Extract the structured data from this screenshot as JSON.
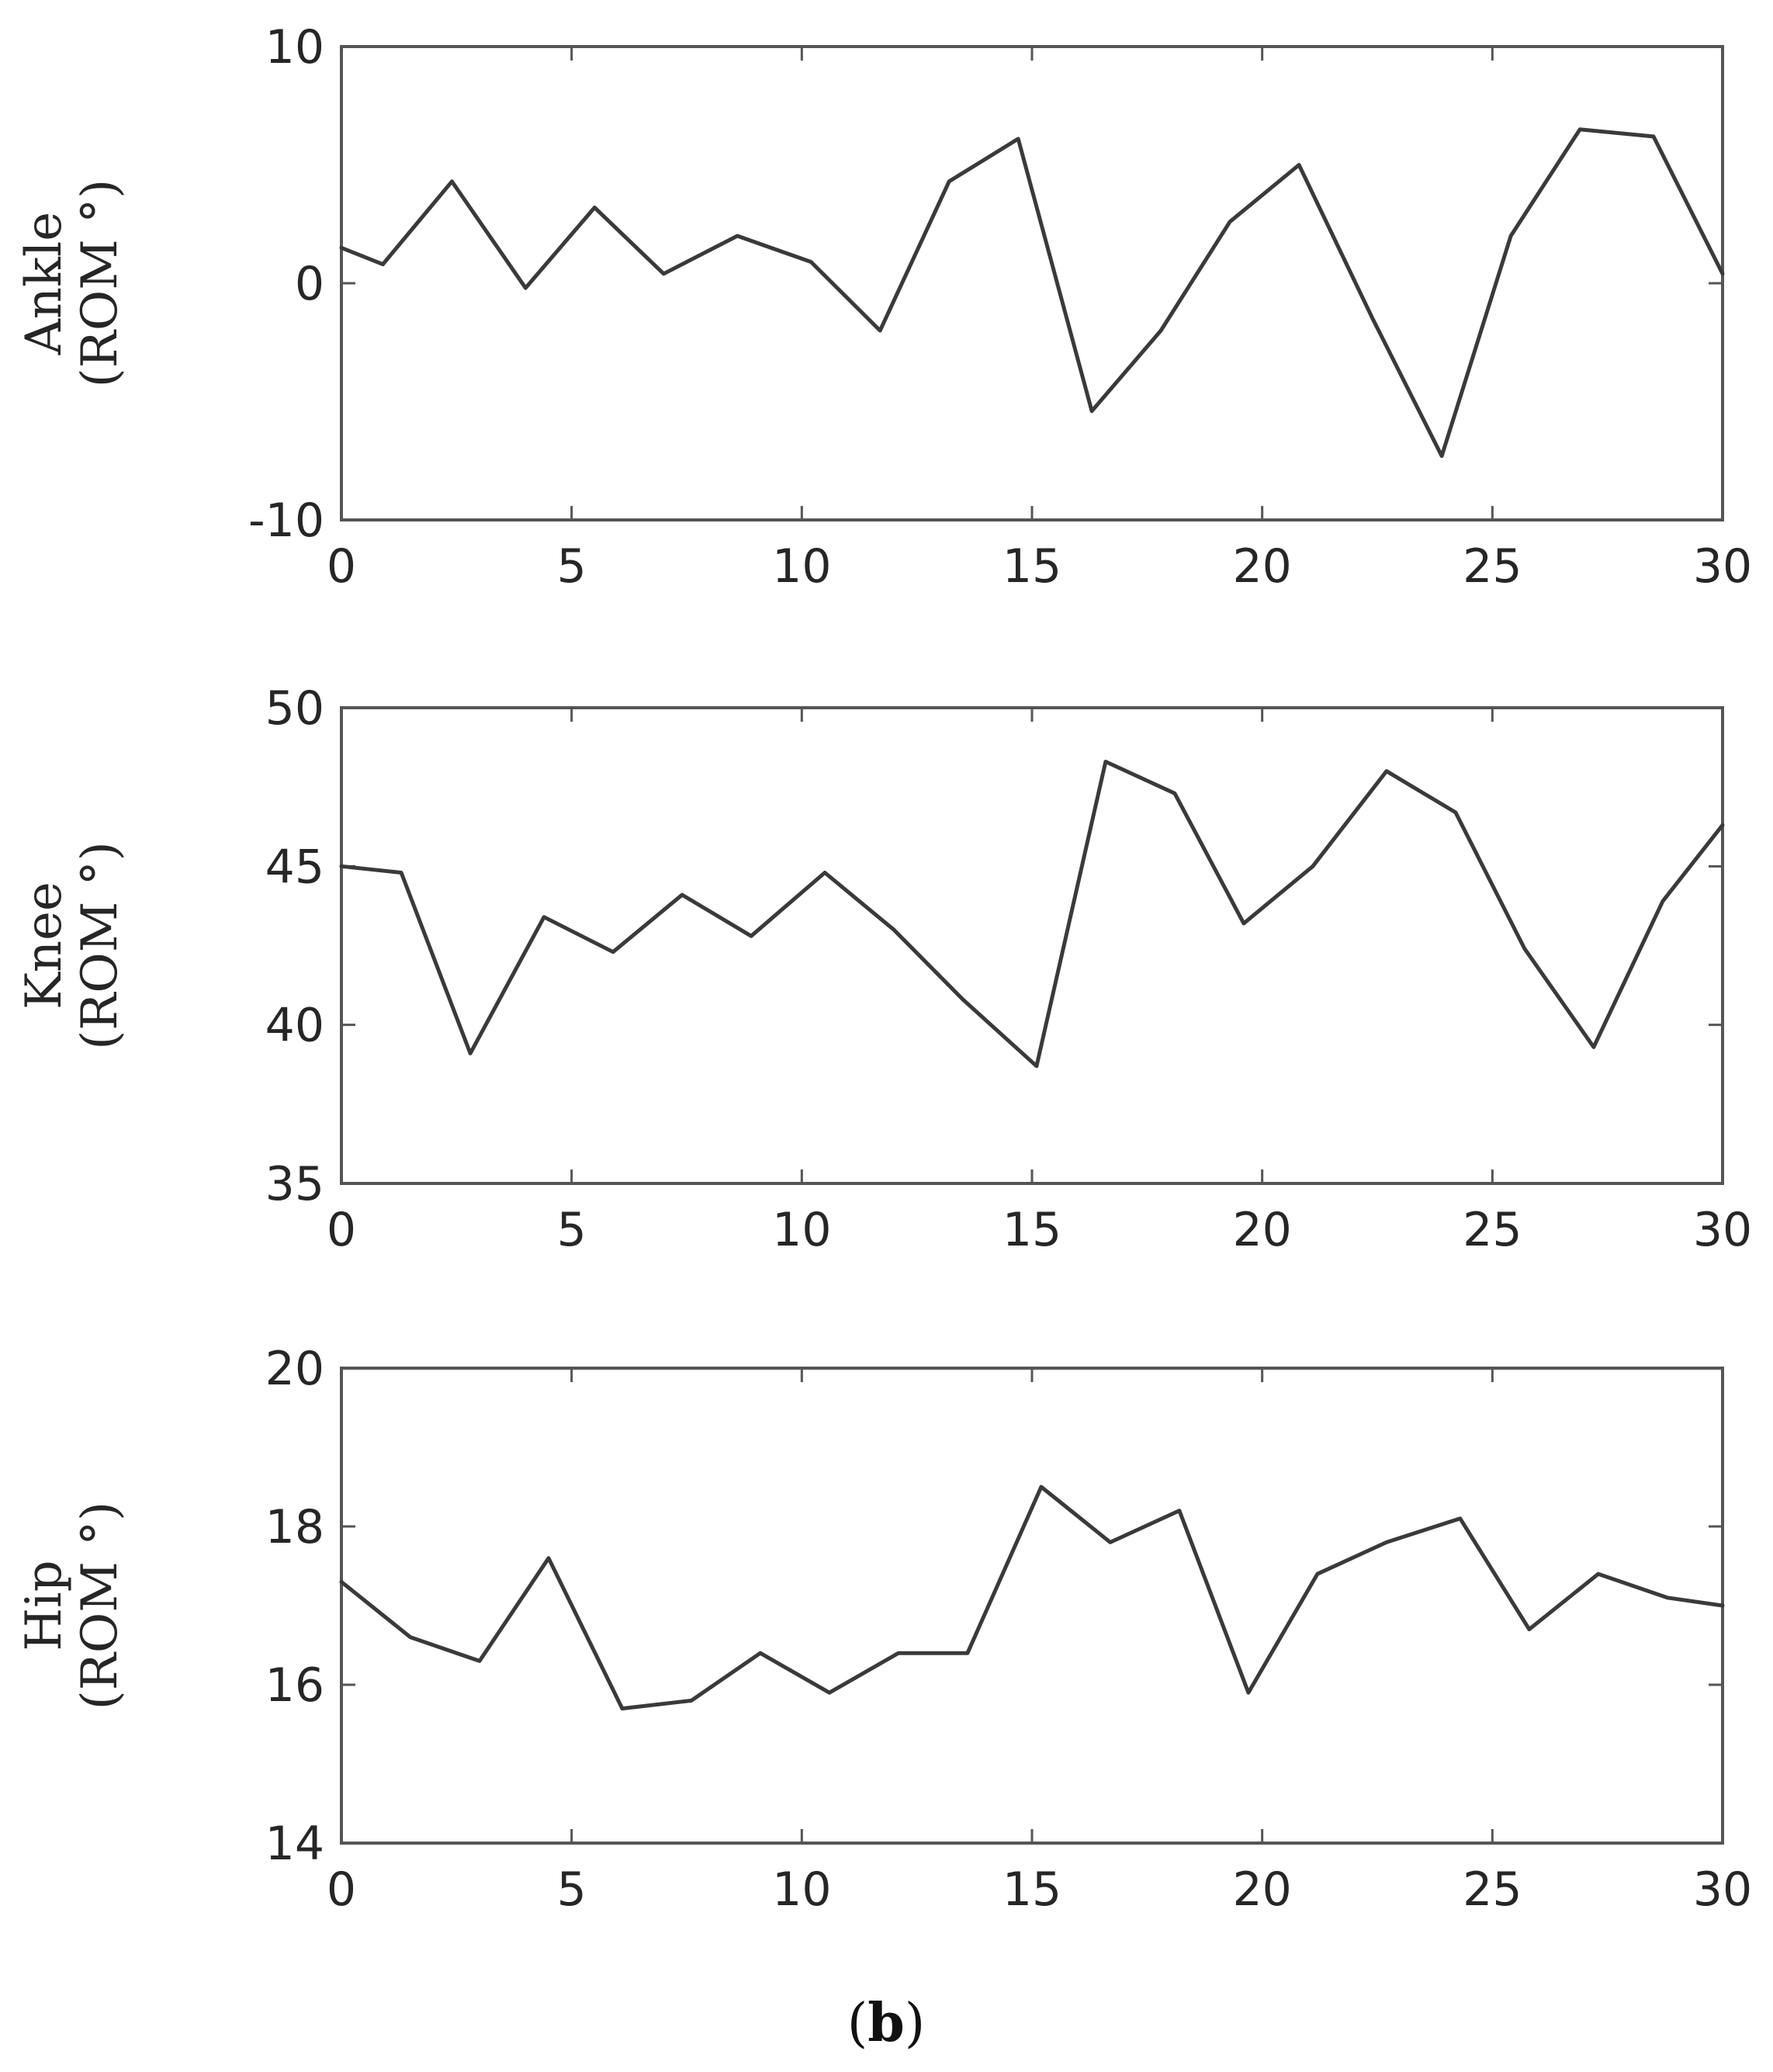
{
  "chart_data": [
    {
      "type": "line",
      "ylabel_line1": "Ankle",
      "ylabel_line2": "(ROM °)",
      "xlim": [
        0,
        30
      ],
      "ylim": [
        -10,
        10
      ],
      "xticks": [
        "0",
        "5",
        "10",
        "15",
        "20",
        "25",
        "30"
      ],
      "yticks": [
        "-10",
        "0",
        "10"
      ],
      "grid": false,
      "series": [
        {
          "x": [
            0,
            0.9,
            2.4,
            4.0,
            5.5,
            7.0,
            8.6,
            10.2,
            11.7,
            13.2,
            14.7,
            16.3,
            17.8,
            19.3,
            20.8,
            22.4,
            23.9,
            25.4,
            26.9,
            28.5,
            30.0
          ],
          "y": [
            1.5,
            0.8,
            4.3,
            -0.2,
            3.2,
            0.4,
            2.0,
            0.9,
            -2.0,
            4.3,
            6.1,
            -5.4,
            -2.0,
            2.6,
            5.0,
            -1.5,
            -7.3,
            2.0,
            6.5,
            6.2,
            0.4
          ]
        }
      ]
    },
    {
      "type": "line",
      "ylabel_line1": "Knee",
      "ylabel_line2": "(ROM °)",
      "xlim": [
        0,
        30
      ],
      "ylim": [
        35,
        50
      ],
      "xticks": [
        "0",
        "5",
        "10",
        "15",
        "20",
        "25",
        "30"
      ],
      "yticks": [
        "35",
        "40",
        "45",
        "50"
      ],
      "grid": false,
      "series": [
        {
          "x": [
            0,
            1.3,
            2.8,
            4.4,
            5.9,
            7.4,
            8.9,
            10.5,
            12.0,
            13.5,
            15.1,
            16.6,
            18.1,
            19.6,
            21.1,
            22.7,
            24.2,
            25.7,
            27.2,
            28.7,
            30.0
          ],
          "y": [
            45.0,
            44.8,
            39.1,
            43.4,
            42.3,
            44.1,
            42.8,
            44.8,
            43.0,
            40.8,
            38.7,
            48.3,
            47.3,
            43.2,
            45.0,
            48.0,
            46.7,
            42.4,
            39.3,
            43.9,
            46.3
          ]
        }
      ]
    },
    {
      "type": "line",
      "ylabel_line1": "Hip",
      "ylabel_line2": "(ROM °)",
      "xlim": [
        0,
        30
      ],
      "ylim": [
        14,
        20
      ],
      "xticks": [
        "0",
        "5",
        "10",
        "15",
        "20",
        "25",
        "30"
      ],
      "yticks": [
        "14",
        "16",
        "18",
        "20"
      ],
      "grid": false,
      "series": [
        {
          "x": [
            0,
            1.5,
            3.0,
            4.5,
            6.1,
            7.6,
            9.1,
            10.6,
            12.1,
            13.6,
            15.2,
            16.7,
            18.2,
            19.7,
            21.2,
            22.7,
            24.3,
            25.8,
            27.3,
            28.8,
            30.0
          ],
          "y": [
            17.3,
            16.6,
            16.3,
            17.6,
            15.7,
            15.8,
            16.4,
            15.9,
            16.4,
            16.4,
            18.5,
            17.8,
            18.2,
            15.9,
            17.4,
            17.8,
            18.1,
            16.7,
            17.4,
            17.1,
            17.0
          ]
        }
      ]
    }
  ],
  "caption": {
    "open": "(",
    "letter": "b",
    "close": ")"
  }
}
